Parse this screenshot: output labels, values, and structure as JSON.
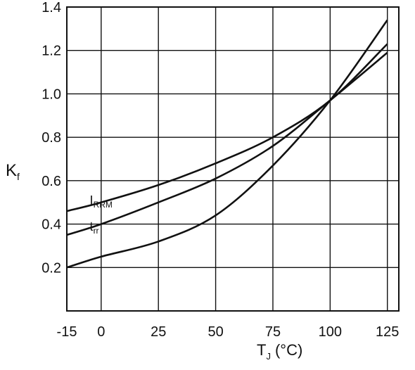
{
  "chart_data": {
    "type": "line",
    "xlabel": "T",
    "xlabel_sub": "J",
    "xlabel_unit": "(°C)",
    "ylabel": "K",
    "ylabel_sub": "f",
    "xlim": [
      -15,
      130
    ],
    "ylim": [
      0,
      1.4
    ],
    "x_ticks": [
      -15,
      0,
      25,
      50,
      75,
      100,
      125
    ],
    "x_tick_labels": [
      "-15",
      "0",
      "25",
      "50",
      "75",
      "100",
      "125"
    ],
    "y_ticks": [
      0.2,
      0.4,
      0.6,
      0.8,
      1.0,
      1.2,
      1.4
    ],
    "y_tick_labels": [
      "0.2",
      "0.4",
      "0.6",
      "0.8",
      "1.0",
      "1.2",
      "1.4"
    ],
    "grid": true,
    "series": [
      {
        "name": "I",
        "name_sub": "RRM",
        "x": [
          -15,
          0,
          25,
          50,
          75,
          100,
          125
        ],
        "y": [
          0.46,
          0.5,
          0.58,
          0.68,
          0.8,
          0.97,
          1.23
        ]
      },
      {
        "name": "t",
        "name_sub": "rr",
        "x": [
          -15,
          0,
          25,
          50,
          75,
          100,
          125
        ],
        "y": [
          0.35,
          0.4,
          0.5,
          0.61,
          0.76,
          0.97,
          1.19
        ]
      },
      {
        "x": [
          -15,
          0,
          25,
          50,
          75,
          100,
          125
        ],
        "y": [
          0.2,
          0.25,
          0.32,
          0.44,
          0.67,
          0.97,
          1.34
        ]
      }
    ]
  }
}
